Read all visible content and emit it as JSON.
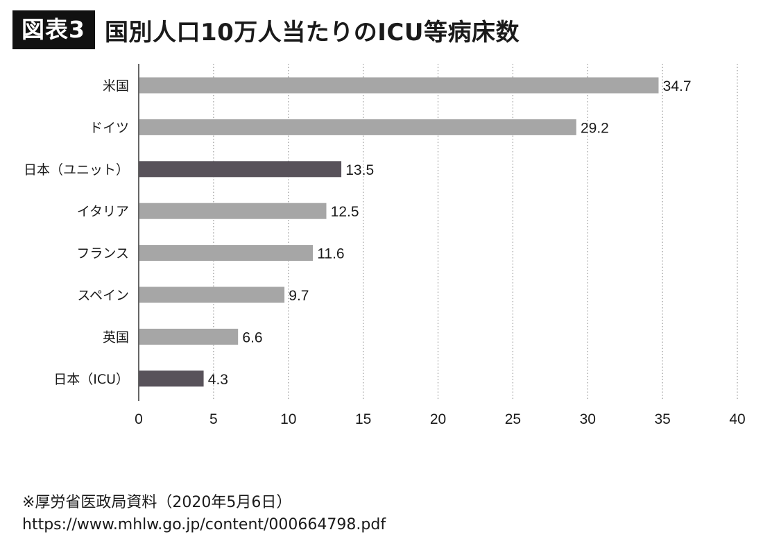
{
  "header": {
    "badge": "図表3",
    "title": "国別人口10万人当たりのICU等病床数"
  },
  "chart_data": {
    "type": "bar",
    "orientation": "horizontal",
    "title": "国別人口10万人当たりのICU等病床数",
    "categories": [
      "米国",
      "ドイツ",
      "日本（ユニット）",
      "イタリア",
      "フランス",
      "スペイン",
      "英国",
      "日本（ICU）"
    ],
    "values": [
      34.7,
      29.2,
      13.5,
      12.5,
      11.6,
      9.7,
      6.6,
      4.3
    ],
    "value_labels": [
      "34.7",
      "29.2",
      "13.5",
      "12.5",
      "11.6",
      "9.7",
      "6.6",
      "4.3"
    ],
    "highlighted": [
      false,
      false,
      true,
      false,
      false,
      false,
      false,
      true
    ],
    "xlim": [
      0,
      40
    ],
    "xticks": [
      "0",
      "5",
      "10",
      "15",
      "20",
      "25",
      "30",
      "35",
      "40"
    ],
    "xlabel": "",
    "ylabel": "",
    "grid": "vertical dotted",
    "colors": {
      "bar": "#a6a6a6",
      "highlight": "#58525a",
      "axis": "#333333",
      "grid": "#9a9a9a",
      "text": "#1a1a1a"
    }
  },
  "source": {
    "line1": "※厚労省医政局資料（2020年5月6日）",
    "line2": "https://www.mhlw.go.jp/content/000664798.pdf"
  }
}
